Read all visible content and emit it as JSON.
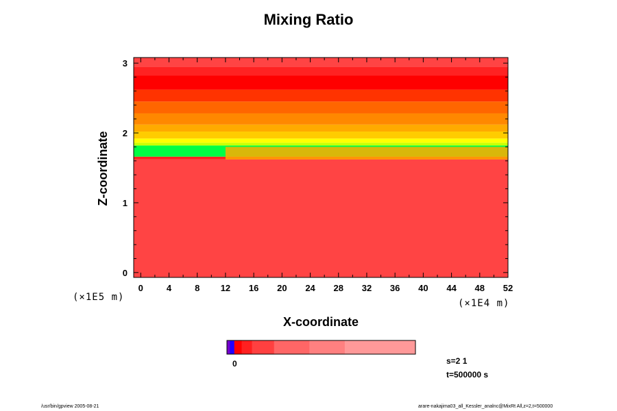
{
  "chart_data": {
    "type": "heatmap",
    "title": "Mixing Ratio",
    "xlabel": "X-coordinate",
    "ylabel": "Z-coordinate",
    "x_multiplier": "(×1E4 m)",
    "z_multiplier": "(×1E5 m)",
    "xlim": [
      -1,
      52
    ],
    "ylim": [
      -0.07,
      3.08
    ],
    "x_ticks": [
      "0",
      "4",
      "8",
      "12",
      "16",
      "20",
      "24",
      "28",
      "32",
      "36",
      "40",
      "44",
      "48",
      "52"
    ],
    "x_tick_values": [
      0,
      4,
      8,
      12,
      16,
      20,
      24,
      28,
      32,
      36,
      40,
      44,
      48,
      52
    ],
    "y_ticks": [
      "0",
      "1",
      "2",
      "3"
    ],
    "y_tick_values": [
      0,
      1,
      2,
      3
    ],
    "bands": [
      {
        "z0": -0.07,
        "z1": 1.62,
        "color": "#ff4444"
      },
      {
        "z0": 1.62,
        "z1": 1.66,
        "color": "#ff2020"
      },
      {
        "z0": 1.66,
        "z1": 1.82,
        "color": "#00ff44"
      },
      {
        "z0": 1.82,
        "z1": 1.86,
        "color": "#ccff00"
      },
      {
        "z0": 1.86,
        "z1": 1.92,
        "color": "#ffff00"
      },
      {
        "z0": 1.92,
        "z1": 2.02,
        "color": "#ffcc00"
      },
      {
        "z0": 2.02,
        "z1": 2.12,
        "color": "#ffaa00"
      },
      {
        "z0": 2.12,
        "z1": 2.28,
        "color": "#ff8800"
      },
      {
        "z0": 2.28,
        "z1": 2.45,
        "color": "#ff6600"
      },
      {
        "z0": 2.45,
        "z1": 2.62,
        "color": "#ff3300"
      },
      {
        "z0": 2.62,
        "z1": 2.82,
        "color": "#ff0000"
      },
      {
        "z0": 2.82,
        "z1": 2.95,
        "color": "#ff2222"
      },
      {
        "z0": 2.95,
        "z1": 3.08,
        "color": "#ff4444"
      }
    ],
    "mixed_layer": {
      "x0": 12,
      "x1": 52,
      "z0": 1.62,
      "z1": 1.8,
      "color": "#ffaa00"
    },
    "colorbar": {
      "segments": [
        {
          "color": "#7700cc",
          "width": 2
        },
        {
          "color": "#2200ff",
          "width": 3
        },
        {
          "color": "#ff0000",
          "width": 5
        },
        {
          "color": "#ff2020",
          "width": 7
        },
        {
          "color": "#ff4040",
          "width": 15
        },
        {
          "color": "#ff6666",
          "width": 24
        },
        {
          "color": "#ff8080",
          "width": 24
        },
        {
          "color": "#ff9999",
          "width": 48
        }
      ],
      "label": "0"
    }
  },
  "info": {
    "step": "s=2 1",
    "time": "t=500000 s"
  },
  "footer": {
    "left": "/usr/bin/gpview 2005-08-21",
    "right": "arare-nakajima03_all_Kessler_analnc@MixRt All,z=2,t=500000"
  }
}
